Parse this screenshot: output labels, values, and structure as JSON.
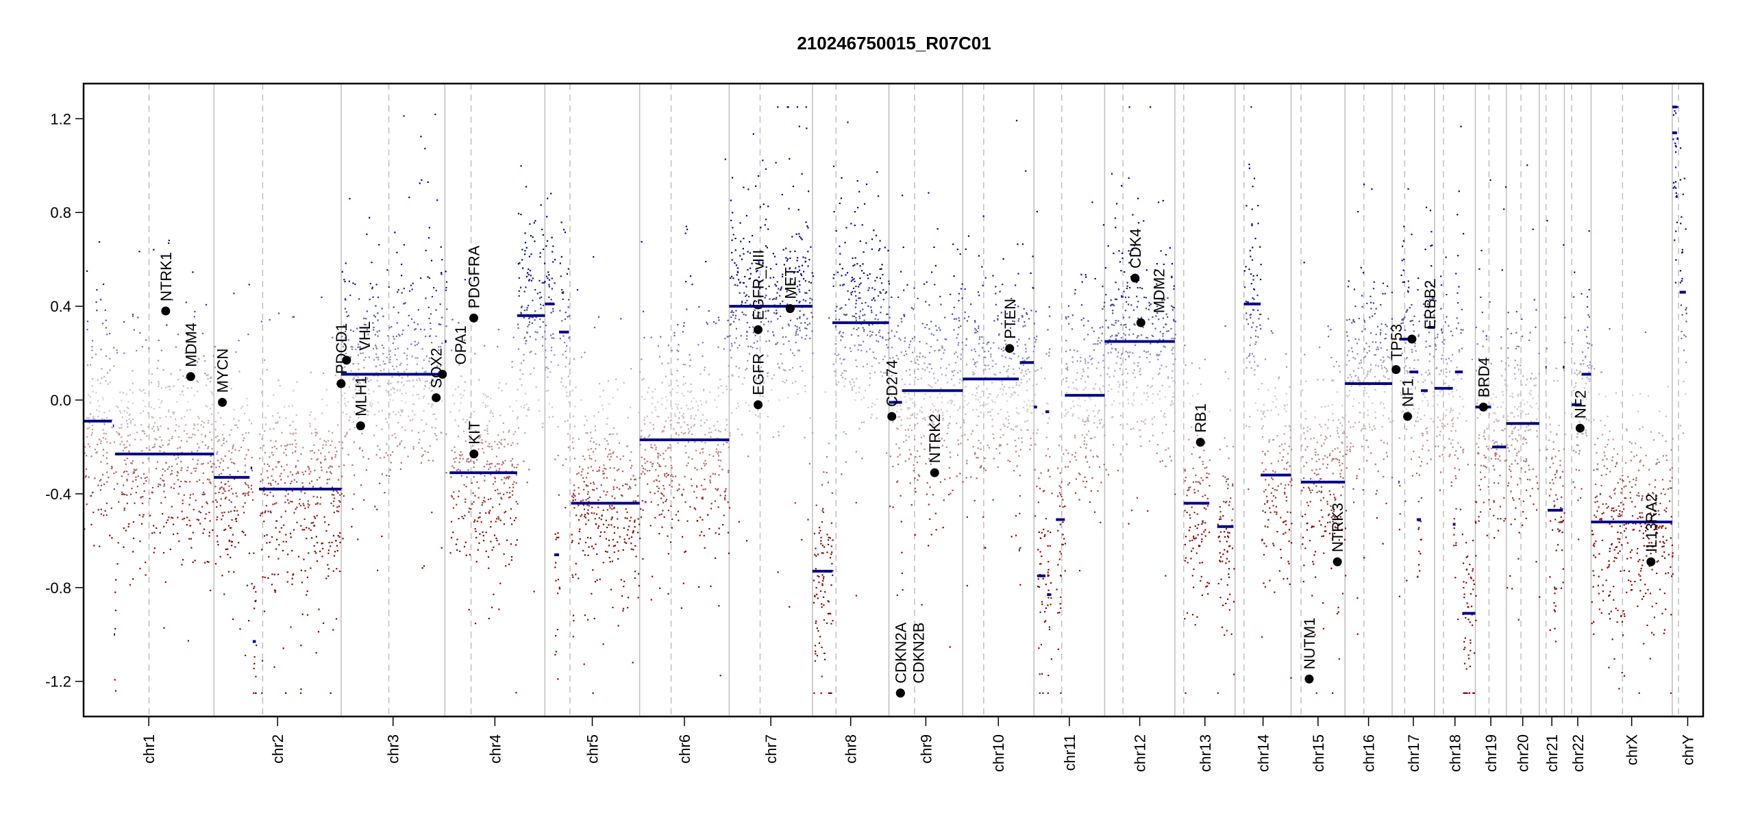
{
  "chart_data": {
    "type": "scatter",
    "title": "210246750015_R07C01",
    "xlabel": "",
    "ylabel": "",
    "ylim": [
      -1.35,
      1.35
    ],
    "yticks": [
      "1.2",
      "0.8",
      "0.4",
      "0.0",
      "-0.4",
      "-0.8",
      "-1.2"
    ],
    "grid": false,
    "colors": {
      "gain": "#00008B",
      "neutral": "#D3D3D3",
      "loss": "#8B0000",
      "segment": "#00008B",
      "gene": "#000000",
      "chrom_line": "#BEBEBE"
    },
    "chromosomes": [
      {
        "name": "chr1",
        "length": 249,
        "centromere": 125
      },
      {
        "name": "chr2",
        "length": 243,
        "centromere": 93
      },
      {
        "name": "chr3",
        "length": 198,
        "centromere": 91
      },
      {
        "name": "chr4",
        "length": 191,
        "centromere": 50
      },
      {
        "name": "chr5",
        "length": 181,
        "centromere": 48
      },
      {
        "name": "chr6",
        "length": 171,
        "centromere": 60
      },
      {
        "name": "chr7",
        "length": 159,
        "centromere": 59
      },
      {
        "name": "chr8",
        "length": 146,
        "centromere": 45
      },
      {
        "name": "chr9",
        "length": 141,
        "centromere": 49
      },
      {
        "name": "chr10",
        "length": 136,
        "centromere": 40
      },
      {
        "name": "chr11",
        "length": 135,
        "centromere": 53
      },
      {
        "name": "chr12",
        "length": 134,
        "centromere": 35
      },
      {
        "name": "chr13",
        "length": 115,
        "centromere": 17
      },
      {
        "name": "chr14",
        "length": 107,
        "centromere": 17
      },
      {
        "name": "chr15",
        "length": 103,
        "centromere": 19
      },
      {
        "name": "chr16",
        "length": 90,
        "centromere": 36
      },
      {
        "name": "chr17",
        "length": 81,
        "centromere": 24
      },
      {
        "name": "chr18",
        "length": 78,
        "centromere": 17
      },
      {
        "name": "chr19",
        "length": 59,
        "centromere": 26
      },
      {
        "name": "chr20",
        "length": 63,
        "centromere": 28
      },
      {
        "name": "chr21",
        "length": 48,
        "centromere": 13
      },
      {
        "name": "chr22",
        "length": 51,
        "centromere": 14
      },
      {
        "name": "chrX",
        "length": 155,
        "centromere": 60
      },
      {
        "name": "chrY",
        "length": 59,
        "centromere": 12
      }
    ],
    "segments": [
      {
        "chr": "chr1",
        "start": 0,
        "end": 54,
        "mean": -0.09
      },
      {
        "chr": "chr1",
        "start": 56,
        "end": 58,
        "mean": -0.11
      },
      {
        "chr": "chr1",
        "start": 58,
        "end": 60,
        "mean": -1.0
      },
      {
        "chr": "chr1",
        "start": 60,
        "end": 249,
        "mean": -0.23
      },
      {
        "chr": "chr2",
        "start": 0,
        "end": 68,
        "mean": -0.33
      },
      {
        "chr": "chr2",
        "start": 70,
        "end": 73,
        "mean": -0.29
      },
      {
        "chr": "chr2",
        "start": 74,
        "end": 80,
        "mean": -1.03
      },
      {
        "chr": "chr2",
        "start": 86,
        "end": 243,
        "mean": -0.38
      },
      {
        "chr": "chr3",
        "start": 0,
        "end": 193,
        "mean": 0.11
      },
      {
        "chr": "chr4",
        "start": 0,
        "end": 3,
        "mean": 0.25
      },
      {
        "chr": "chr4",
        "start": 9,
        "end": 138,
        "mean": -0.31
      },
      {
        "chr": "chr4",
        "start": 138,
        "end": 191,
        "mean": 0.36
      },
      {
        "chr": "chr5",
        "start": 0,
        "end": 18,
        "mean": 0.41
      },
      {
        "chr": "chr5",
        "start": 18,
        "end": 27,
        "mean": -0.66
      },
      {
        "chr": "chr5",
        "start": 27,
        "end": 46,
        "mean": 0.29
      },
      {
        "chr": "chr5",
        "start": 50,
        "end": 181,
        "mean": -0.44
      },
      {
        "chr": "chr6",
        "start": 0,
        "end": 171,
        "mean": -0.17
      },
      {
        "chr": "chr7",
        "start": 0,
        "end": 159,
        "mean": 0.4
      },
      {
        "chr": "chr8",
        "start": 0,
        "end": 38,
        "mean": -0.73
      },
      {
        "chr": "chr8",
        "start": 38,
        "end": 146,
        "mean": 0.33
      },
      {
        "chr": "chr9",
        "start": 0,
        "end": 25,
        "mean": -0.01
      },
      {
        "chr": "chr9",
        "start": 25,
        "end": 141,
        "mean": 0.04
      },
      {
        "chr": "chr10",
        "start": 0,
        "end": 107,
        "mean": 0.09
      },
      {
        "chr": "chr10",
        "start": 107,
        "end": 109,
        "mean": -0.64
      },
      {
        "chr": "chr10",
        "start": 109,
        "end": 136,
        "mean": 0.16
      },
      {
        "chr": "chr11",
        "start": 0,
        "end": 6,
        "mean": -0.03
      },
      {
        "chr": "chr11",
        "start": 6,
        "end": 22,
        "mean": -0.75
      },
      {
        "chr": "chr11",
        "start": 22,
        "end": 29,
        "mean": -0.05
      },
      {
        "chr": "chr11",
        "start": 25,
        "end": 33,
        "mean": -0.83
      },
      {
        "chr": "chr11",
        "start": 42,
        "end": 59,
        "mean": -0.51
      },
      {
        "chr": "chr11",
        "start": 59,
        "end": 135,
        "mean": 0.02
      },
      {
        "chr": "chr12",
        "start": 0,
        "end": 134,
        "mean": 0.25
      },
      {
        "chr": "chr13",
        "start": 17,
        "end": 66,
        "mean": -0.44
      },
      {
        "chr": "chr13",
        "start": 81,
        "end": 112,
        "mean": -0.54
      },
      {
        "chr": "chr14",
        "start": 17,
        "end": 49,
        "mean": 0.41
      },
      {
        "chr": "chr14",
        "start": 49,
        "end": 107,
        "mean": -0.32
      },
      {
        "chr": "chr15",
        "start": 19,
        "end": 103,
        "mean": -0.35
      },
      {
        "chr": "chr16",
        "start": 0,
        "end": 90,
        "mean": 0.07
      },
      {
        "chr": "chr17",
        "start": 12,
        "end": 14,
        "mean": -0.35
      },
      {
        "chr": "chr17",
        "start": 14,
        "end": 33,
        "mean": 0.26
      },
      {
        "chr": "chr17",
        "start": 33,
        "end": 50,
        "mean": 0.12
      },
      {
        "chr": "chr17",
        "start": 47,
        "end": 55,
        "mean": -0.51
      },
      {
        "chr": "chr17",
        "start": 55,
        "end": 68,
        "mean": 0.04
      },
      {
        "chr": "chr17",
        "start": 68,
        "end": 81,
        "mean": 0.31
      },
      {
        "chr": "chr18",
        "start": 0,
        "end": 35,
        "mean": 0.05
      },
      {
        "chr": "chr18",
        "start": 35,
        "end": 40,
        "mean": -0.53
      },
      {
        "chr": "chr18",
        "start": 39,
        "end": 54,
        "mean": 0.12
      },
      {
        "chr": "chr18",
        "start": 53,
        "end": 78,
        "mean": -0.91
      },
      {
        "chr": "chr19",
        "start": 0,
        "end": 30,
        "mean": -0.03
      },
      {
        "chr": "chr19",
        "start": 32,
        "end": 59,
        "mean": -0.2
      },
      {
        "chr": "chr20",
        "start": 0,
        "end": 63,
        "mean": -0.1
      },
      {
        "chr": "chr21",
        "start": 12,
        "end": 14,
        "mean": 0.14
      },
      {
        "chr": "chr21",
        "start": 16,
        "end": 45,
        "mean": -0.47
      },
      {
        "chr": "chr21",
        "start": 45,
        "end": 48,
        "mean": 0.14
      },
      {
        "chr": "chr22",
        "start": 14,
        "end": 33,
        "mean": -0.02
      },
      {
        "chr": "chr22",
        "start": 33,
        "end": 51,
        "mean": 0.11
      },
      {
        "chr": "chrX",
        "start": 0,
        "end": 155,
        "mean": -0.52
      },
      {
        "chr": "chrY",
        "start": 0,
        "end": 9,
        "mean": 1.25
      },
      {
        "chr": "chrY",
        "start": 0,
        "end": 9,
        "mean": 1.14
      },
      {
        "chr": "chrY",
        "start": 14,
        "end": 26,
        "mean": 0.46
      }
    ],
    "genes": [
      {
        "name": "NTRK1",
        "chr": "chr1",
        "pos": 156.8,
        "value": 0.38
      },
      {
        "name": "MDM4",
        "chr": "chr1",
        "pos": 204.5,
        "value": 0.1
      },
      {
        "name": "MYCN",
        "chr": "chr2",
        "pos": 16.0,
        "value": -0.01
      },
      {
        "name": "PDCD1",
        "chr": "chr2",
        "pos": 242.8,
        "value": 0.07
      },
      {
        "name": "VHL",
        "chr": "chr3",
        "pos": 10.2,
        "value": 0.17
      },
      {
        "name": "MLH1",
        "chr": "chr3",
        "pos": 37.0,
        "value": -0.11
      },
      {
        "name": "SOX2",
        "chr": "chr3",
        "pos": 181.4,
        "value": 0.01
      },
      {
        "name": "OPA1",
        "chr": "chr3",
        "pos": 193.3,
        "value": 0.11
      },
      {
        "name": "PDGFRA",
        "chr": "chr4",
        "pos": 55.1,
        "value": 0.35
      },
      {
        "name": "KIT",
        "chr": "chr4",
        "pos": 55.5,
        "value": -0.23
      },
      {
        "name": "EGFR_vIII",
        "chr": "chr7",
        "pos": 55.1,
        "value": 0.3
      },
      {
        "name": "EGFR",
        "chr": "chr7",
        "pos": 55.2,
        "value": -0.02
      },
      {
        "name": "MET",
        "chr": "chr7",
        "pos": 116.3,
        "value": 0.39
      },
      {
        "name": "CD274",
        "chr": "chr9",
        "pos": 5.5,
        "value": -0.07
      },
      {
        "name": "CDKN2A",
        "chr": "chr9",
        "pos": 21.97,
        "value": -1.25
      },
      {
        "name": "CDKN2B",
        "chr": "chr9",
        "pos": 22.0,
        "value": -1.25
      },
      {
        "name": "NTRK2",
        "chr": "chr9",
        "pos": 87.3,
        "value": -0.31
      },
      {
        "name": "PTEN",
        "chr": "chr10",
        "pos": 89.6,
        "value": 0.22
      },
      {
        "name": "CDK4",
        "chr": "chr12",
        "pos": 58.1,
        "value": 0.52
      },
      {
        "name": "MDM2",
        "chr": "chr12",
        "pos": 69.2,
        "value": 0.33
      },
      {
        "name": "RB1",
        "chr": "chr13",
        "pos": 48.9,
        "value": -0.18
      },
      {
        "name": "NUTM1",
        "chr": "chr15",
        "pos": 34.6,
        "value": -1.19
      },
      {
        "name": "NTRK3",
        "chr": "chr15",
        "pos": 88.5,
        "value": -0.69
      },
      {
        "name": "TP53",
        "chr": "chr17",
        "pos": 7.6,
        "value": 0.13
      },
      {
        "name": "NF1",
        "chr": "chr17",
        "pos": 29.5,
        "value": -0.07
      },
      {
        "name": "ERBB2",
        "chr": "chr17",
        "pos": 37.8,
        "value": 0.26
      },
      {
        "name": "BRD4",
        "chr": "chr19",
        "pos": 15.4,
        "value": -0.03
      },
      {
        "name": "NF2",
        "chr": "chr22",
        "pos": 30.0,
        "value": -0.12
      },
      {
        "name": "IL13RA2",
        "chr": "chrX",
        "pos": 114.3,
        "value": -0.69
      }
    ]
  }
}
